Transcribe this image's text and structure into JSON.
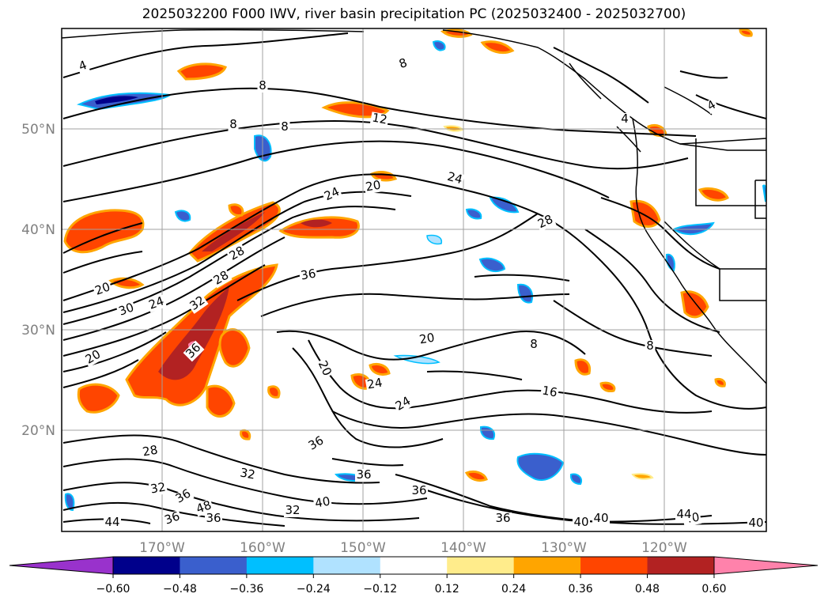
{
  "title": "2025032200 F000 IWV, river basin precipitation PC (2025032400 - 2025032700)",
  "lat_labels": [
    "50°N",
    "40°N",
    "30°N",
    "20°N"
  ],
  "lon_labels": [
    "170°W",
    "160°W",
    "150°W",
    "140°W",
    "130°W",
    "120°W"
  ],
  "contour_labels": [
    "4",
    "8",
    "8",
    "8",
    "12",
    "24",
    "20",
    "24",
    "28",
    "28",
    "36",
    "28",
    "20",
    "30",
    "24",
    "32",
    "36",
    "20",
    "20",
    "20",
    "24",
    "16",
    "24",
    "8",
    "8",
    "4",
    "4",
    "8",
    "36",
    "36",
    "28",
    "32",
    "32",
    "40",
    "36",
    "36",
    "32",
    "36",
    "40",
    "40",
    "48",
    "44",
    "36",
    "36",
    "40",
    "44",
    "40"
  ],
  "colorbar": {
    "ticks": [
      "−0.60",
      "−0.48",
      "−0.36",
      "−0.24",
      "−0.12",
      "0.12",
      "0.24",
      "0.36",
      "0.48",
      "0.60"
    ],
    "colors": [
      "#9932cc",
      "#00008b",
      "#3a5fcd",
      "#00bfff",
      "#b0e2ff",
      "#ffffff",
      "#ffec8b",
      "#ffa500",
      "#ff4500",
      "#b22222",
      "#ff82ab",
      "#ff82ab"
    ]
  },
  "colors": {
    "land": "#000000",
    "grid": "#a0a0a0",
    "label": "#808080"
  }
}
